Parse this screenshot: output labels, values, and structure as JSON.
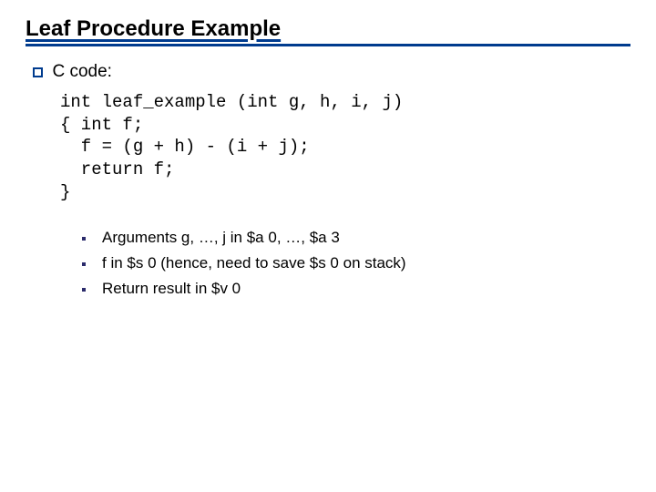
{
  "title": "Leaf Procedure Example",
  "section_label": "C code:",
  "code": "int leaf_example (int g, h, i, j)\n{ int f;\n  f = (g + h) - (i + j);\n  return f;\n}",
  "sub_items": [
    "Arguments g, …, j in $a 0, …, $a 3",
    "f in $s 0 (hence, need to save $s 0 on stack)",
    "Return result in $v 0"
  ],
  "colors": {
    "underline": "#003b8e",
    "bullet_border": "#003b8e",
    "sub_bullet": "#2b2b6b",
    "background": "#ffffff",
    "text": "#000000"
  },
  "typography": {
    "title_fontsize": 24,
    "section_fontsize": 19,
    "code_fontsize": 19,
    "sub_fontsize": 17,
    "code_font": "Courier New"
  }
}
